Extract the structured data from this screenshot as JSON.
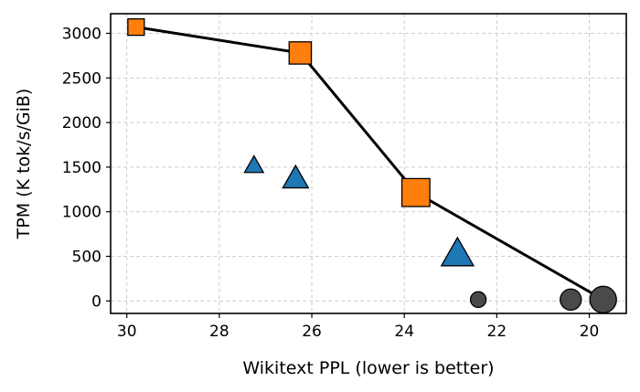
{
  "chart_data": {
    "type": "scatter",
    "title": "",
    "xlabel": "Wikitext PPL (lower is better)",
    "ylabel": "TPM (K tok/s/GiB)",
    "x_reversed": true,
    "xlim": [
      30.35,
      19.2
    ],
    "ylim": [
      -140,
      3220
    ],
    "xticks": [
      30,
      28,
      26,
      24,
      22,
      20
    ],
    "yticks": [
      0,
      500,
      1000,
      1500,
      2000,
      2500,
      3000
    ],
    "grid": true,
    "legend": "none",
    "series": [
      {
        "marker": "square",
        "color": "#ff7f0e",
        "connected": true,
        "line_color": "#000000",
        "points": [
          {
            "x": 29.8,
            "y": 3070,
            "size": 1
          },
          {
            "x": 26.25,
            "y": 2780,
            "size": 1.35
          },
          {
            "x": 23.75,
            "y": 1215,
            "size": 1.7
          }
        ]
      },
      {
        "marker": "triangle",
        "color": "#1f77b4",
        "connected": false,
        "points": [
          {
            "x": 27.25,
            "y": 1520,
            "size": 1
          },
          {
            "x": 26.35,
            "y": 1375,
            "size": 1.35
          },
          {
            "x": 22.85,
            "y": 530,
            "size": 1.7
          }
        ]
      },
      {
        "marker": "circle",
        "color": "#4a4a4a",
        "connected": false,
        "points": [
          {
            "x": 22.4,
            "y": 15,
            "size": 1
          },
          {
            "x": 20.4,
            "y": 15,
            "size": 1.35
          },
          {
            "x": 19.7,
            "y": 15,
            "size": 1.7
          }
        ]
      }
    ],
    "trend_line": {
      "color": "#000000",
      "points": [
        {
          "x": 29.8,
          "y": 3070
        },
        {
          "x": 26.25,
          "y": 2780
        },
        {
          "x": 23.75,
          "y": 1215
        },
        {
          "x": 19.7,
          "y": 15
        }
      ]
    }
  }
}
